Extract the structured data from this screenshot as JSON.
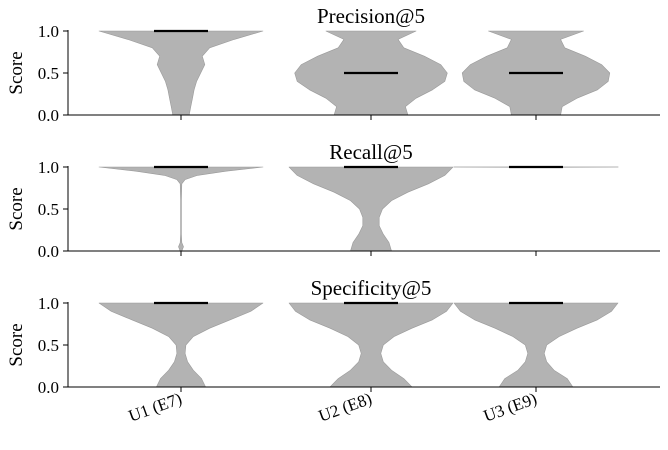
{
  "chart_data": [
    {
      "type": "violin",
      "title": "Precision@5",
      "ylabel": "Score",
      "ylim": [
        0.0,
        1.0
      ],
      "yticks": [
        "0.0",
        "0.5",
        "1.0"
      ],
      "categories": [
        "U1 (E7)",
        "U2 (E8)",
        "U3 (E9)"
      ],
      "medians": [
        1.0,
        0.5,
        0.5
      ],
      "color": "#b3b3b3",
      "violins": [
        {
          "category": "U1 (E7)",
          "profile": [
            [
              0.0,
              0.1
            ],
            [
              0.1,
              0.12
            ],
            [
              0.2,
              0.14
            ],
            [
              0.3,
              0.16
            ],
            [
              0.4,
              0.19
            ],
            [
              0.5,
              0.24
            ],
            [
              0.6,
              0.29
            ],
            [
              0.7,
              0.26
            ],
            [
              0.8,
              0.35
            ],
            [
              0.9,
              0.65
            ],
            [
              1.0,
              1.0
            ]
          ]
        },
        {
          "category": "U2 (E8)",
          "profile": [
            [
              0.0,
              0.45
            ],
            [
              0.1,
              0.42
            ],
            [
              0.2,
              0.55
            ],
            [
              0.3,
              0.75
            ],
            [
              0.4,
              0.9
            ],
            [
              0.5,
              0.93
            ],
            [
              0.6,
              0.85
            ],
            [
              0.7,
              0.65
            ],
            [
              0.8,
              0.4
            ],
            [
              0.9,
              0.33
            ],
            [
              1.0,
              0.55
            ]
          ]
        },
        {
          "category": "U3 (E9)",
          "profile": [
            [
              0.0,
              0.3
            ],
            [
              0.1,
              0.32
            ],
            [
              0.2,
              0.5
            ],
            [
              0.3,
              0.75
            ],
            [
              0.4,
              0.88
            ],
            [
              0.5,
              0.9
            ],
            [
              0.6,
              0.8
            ],
            [
              0.7,
              0.6
            ],
            [
              0.8,
              0.35
            ],
            [
              0.9,
              0.3
            ],
            [
              1.0,
              0.58
            ]
          ]
        }
      ]
    },
    {
      "type": "violin",
      "title": "Recall@5",
      "ylabel": "Score",
      "ylim": [
        0.0,
        1.0
      ],
      "yticks": [
        "0.0",
        "0.5",
        "1.0"
      ],
      "categories": [
        "U1 (E7)",
        "U2 (E8)",
        "U3 (E9)"
      ],
      "medians": [
        1.0,
        1.0,
        1.0
      ],
      "color": "#b3b3b3",
      "violins": [
        {
          "category": "U1 (E7)",
          "profile": [
            [
              0.0,
              0.01
            ],
            [
              0.05,
              0.03
            ],
            [
              0.1,
              0.01
            ],
            [
              0.2,
              0.005
            ],
            [
              0.4,
              0.005
            ],
            [
              0.6,
              0.005
            ],
            [
              0.8,
              0.01
            ],
            [
              0.85,
              0.05
            ],
            [
              0.9,
              0.2
            ],
            [
              0.95,
              0.55
            ],
            [
              1.0,
              1.0
            ]
          ]
        },
        {
          "category": "U2 (E8)",
          "profile": [
            [
              0.0,
              0.25
            ],
            [
              0.1,
              0.22
            ],
            [
              0.2,
              0.15
            ],
            [
              0.3,
              0.1
            ],
            [
              0.4,
              0.1
            ],
            [
              0.5,
              0.14
            ],
            [
              0.6,
              0.25
            ],
            [
              0.7,
              0.45
            ],
            [
              0.8,
              0.7
            ],
            [
              0.9,
              0.9
            ],
            [
              1.0,
              1.0
            ]
          ]
        },
        {
          "category": "U3 (E9)",
          "profile": [
            [
              0.995,
              0.004
            ],
            [
              1.0,
              1.0
            ]
          ]
        }
      ]
    },
    {
      "type": "violin",
      "title": "Specificity@5",
      "ylabel": "Score",
      "ylim": [
        0.0,
        1.0
      ],
      "yticks": [
        "0.0",
        "0.5",
        "1.0"
      ],
      "categories": [
        "U1 (E7)",
        "U2 (E8)",
        "U3 (E9)"
      ],
      "medians": [
        1.0,
        1.0,
        1.0
      ],
      "color": "#b3b3b3",
      "violins": [
        {
          "category": "U1 (E7)",
          "profile": [
            [
              0.0,
              0.3
            ],
            [
              0.1,
              0.25
            ],
            [
              0.2,
              0.15
            ],
            [
              0.3,
              0.08
            ],
            [
              0.4,
              0.05
            ],
            [
              0.5,
              0.06
            ],
            [
              0.6,
              0.15
            ],
            [
              0.7,
              0.35
            ],
            [
              0.8,
              0.6
            ],
            [
              0.9,
              0.85
            ],
            [
              1.0,
              1.0
            ]
          ]
        },
        {
          "category": "U2 (E8)",
          "profile": [
            [
              0.0,
              0.5
            ],
            [
              0.1,
              0.4
            ],
            [
              0.2,
              0.25
            ],
            [
              0.3,
              0.15
            ],
            [
              0.4,
              0.12
            ],
            [
              0.5,
              0.15
            ],
            [
              0.6,
              0.28
            ],
            [
              0.7,
              0.5
            ],
            [
              0.8,
              0.75
            ],
            [
              0.9,
              0.92
            ],
            [
              1.0,
              1.0
            ]
          ]
        },
        {
          "category": "U3 (E9)",
          "profile": [
            [
              0.0,
              0.45
            ],
            [
              0.1,
              0.38
            ],
            [
              0.2,
              0.22
            ],
            [
              0.3,
              0.13
            ],
            [
              0.4,
              0.1
            ],
            [
              0.5,
              0.13
            ],
            [
              0.6,
              0.28
            ],
            [
              0.7,
              0.5
            ],
            [
              0.8,
              0.75
            ],
            [
              0.9,
              0.92
            ],
            [
              1.0,
              1.0
            ]
          ]
        }
      ]
    }
  ]
}
